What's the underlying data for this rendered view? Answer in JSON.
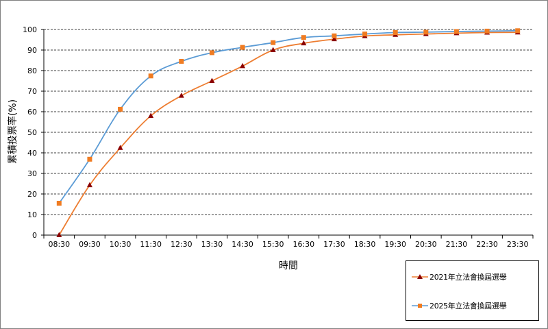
{
  "chart_data": {
    "type": "line",
    "title": "",
    "xlabel": "時間",
    "ylabel": "累積投票率(%)",
    "categories": [
      "08:30",
      "09:30",
      "10:30",
      "11:30",
      "12:30",
      "13:30",
      "14:30",
      "15:30",
      "16:30",
      "17:30",
      "18:30",
      "19:30",
      "20:30",
      "21:30",
      "22:30",
      "23:30"
    ],
    "ylim": [
      0,
      100
    ],
    "yticks": [
      0,
      10,
      20,
      30,
      40,
      50,
      60,
      70,
      80,
      90,
      100
    ],
    "grid": "horizontal-dashed",
    "legend_position": "bottom-right",
    "series": [
      {
        "name": "2021年立法會換屆選舉",
        "color": "#ed7d31",
        "marker": "triangle",
        "marker_color": "#8b0000",
        "values": [
          0,
          24.3,
          42.4,
          58.0,
          67.8,
          75.0,
          82.2,
          90.0,
          93.3,
          95.3,
          96.8,
          97.4,
          97.8,
          98.2,
          98.5,
          98.6
        ]
      },
      {
        "name": "2025年立法會換屆選舉",
        "color": "#5b9bd5",
        "marker": "square",
        "marker_color": "#f07c22",
        "values": [
          15.5,
          36.9,
          61.2,
          77.4,
          84.5,
          88.7,
          91.3,
          93.6,
          96.1,
          96.9,
          97.8,
          98.5,
          98.7,
          99.0,
          99.2,
          99.4
        ]
      }
    ]
  }
}
